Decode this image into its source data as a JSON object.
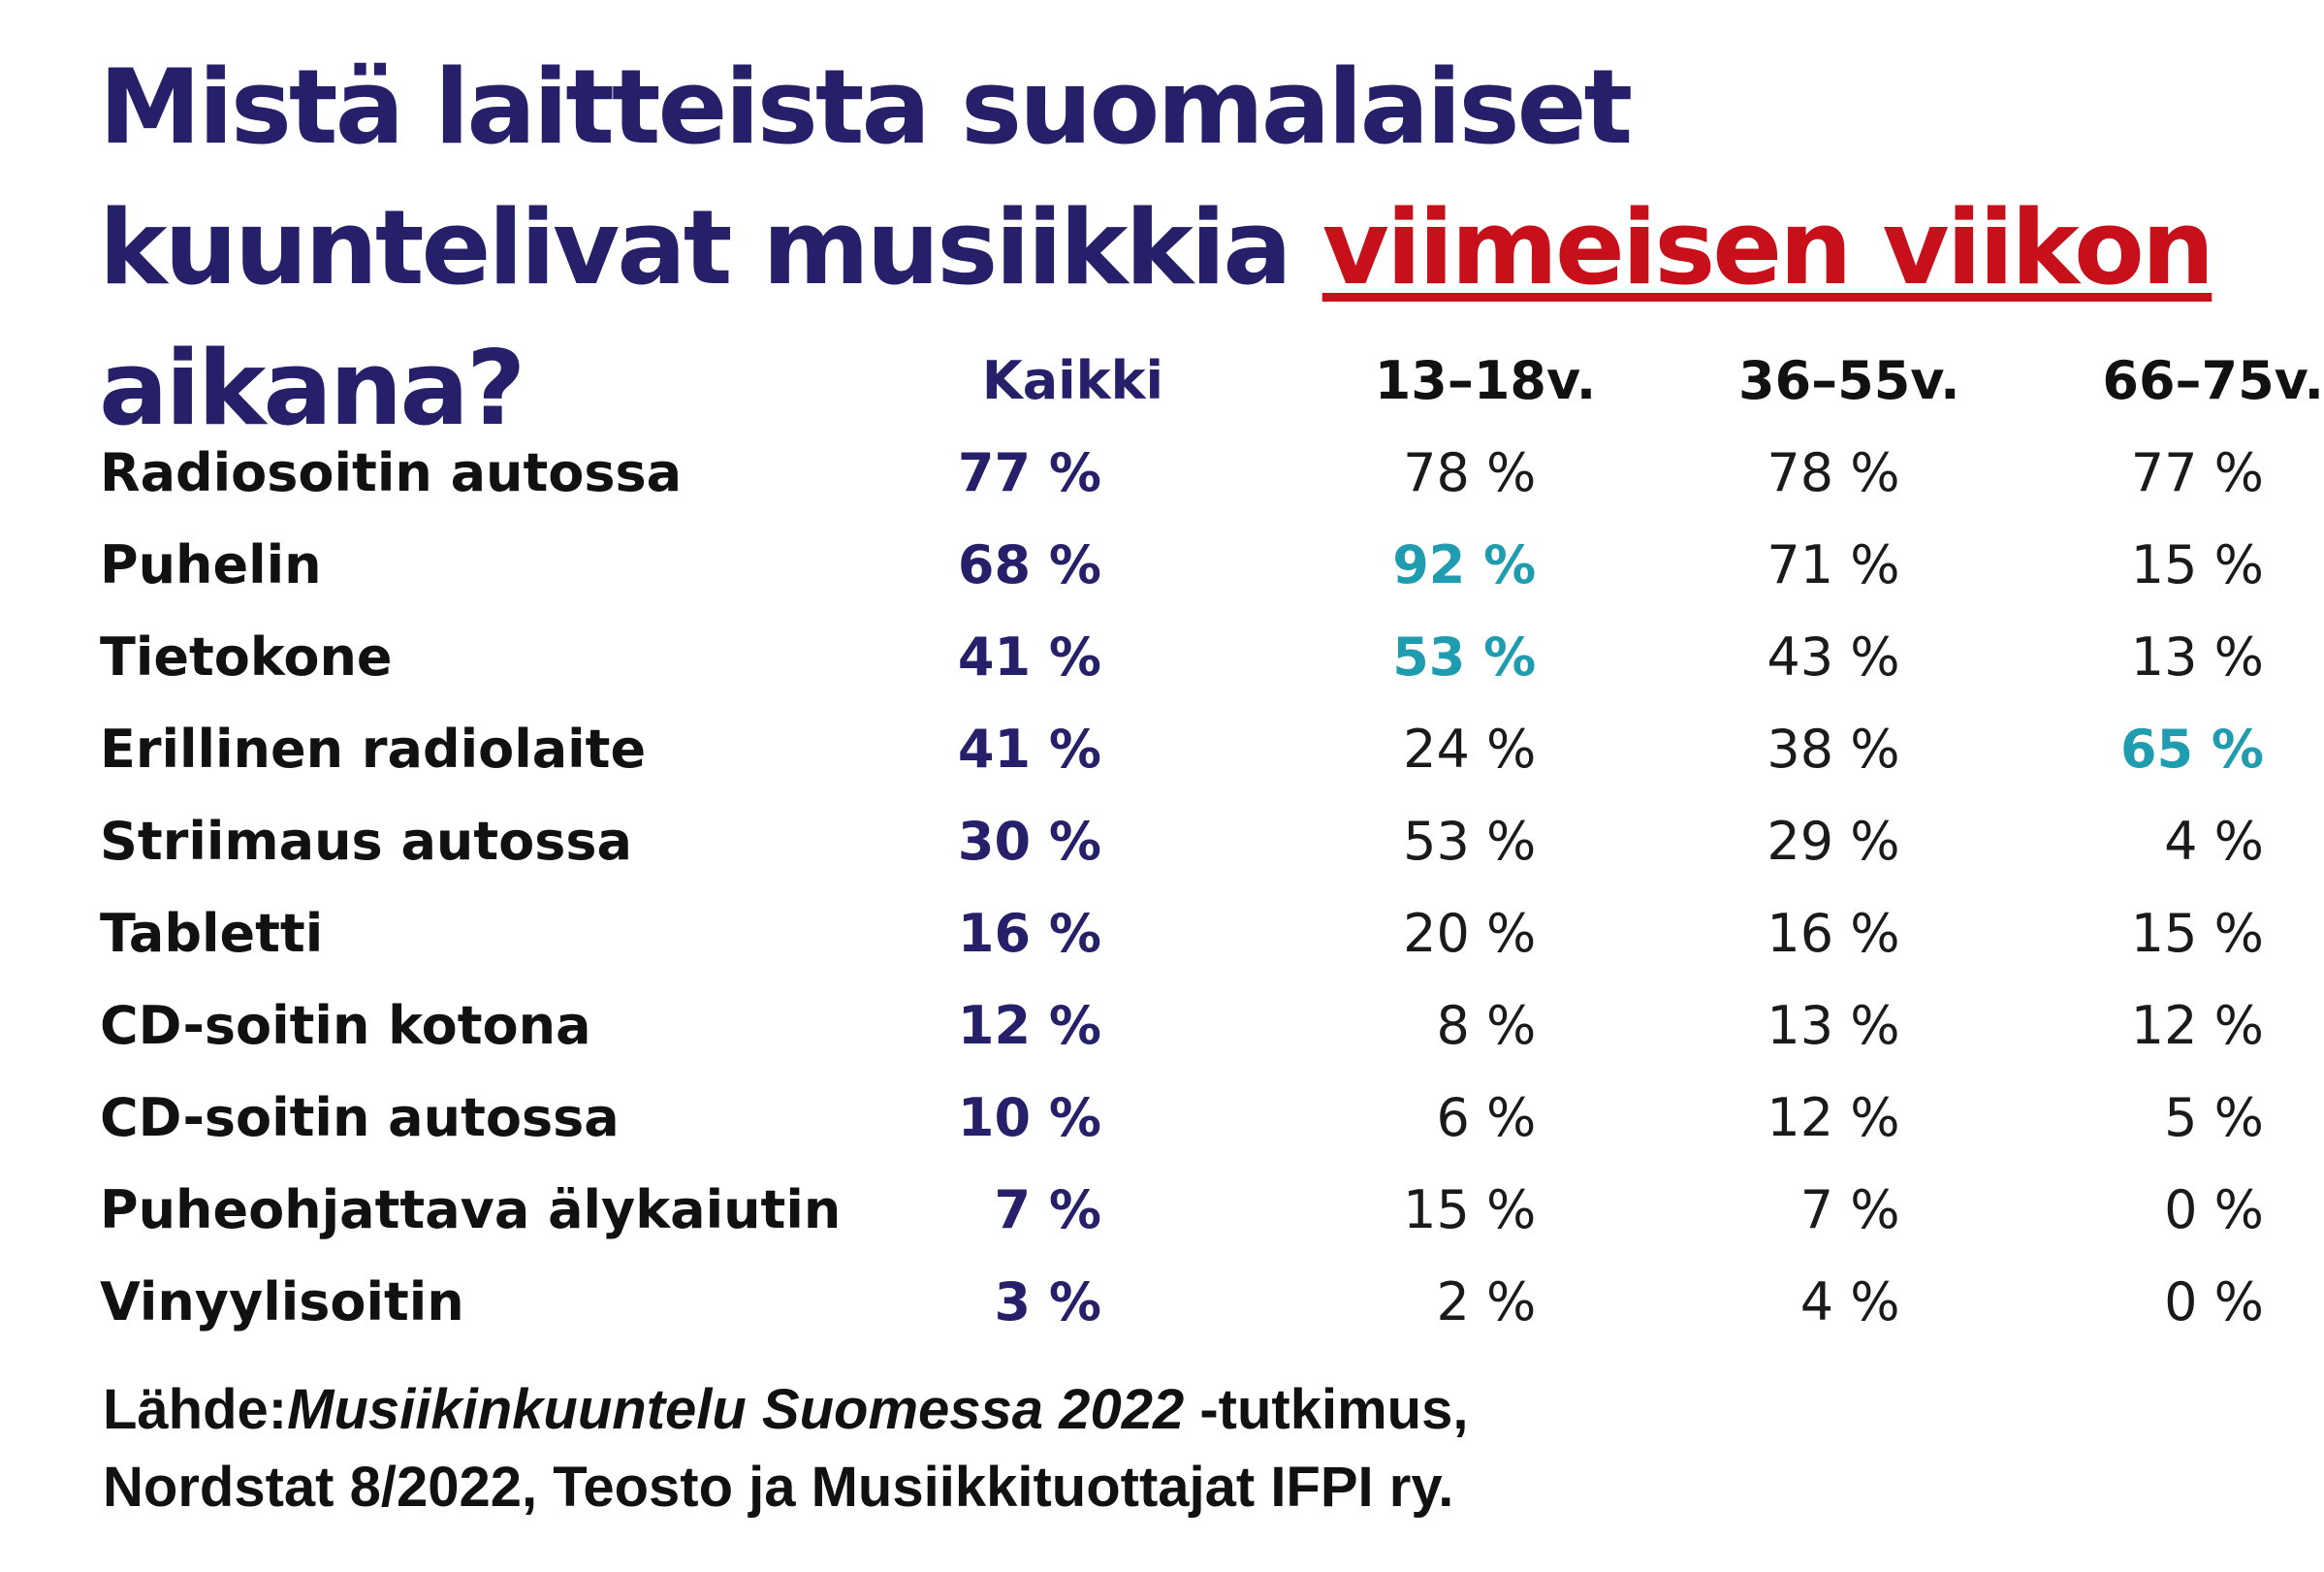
{
  "title": {
    "part1": "Mistä laitteista suomalaiset kuuntelivat musiikkia ",
    "highlight": "viimeisen viikon",
    "part2": " aikana?"
  },
  "chart_data": {
    "type": "table",
    "columns": [
      "Kaikki",
      "13–18v.",
      "36–55v.",
      "66–75v."
    ],
    "rows": [
      {
        "label": "Radiosoitin autossa",
        "values": [
          "77 %",
          "78 %",
          "78 %",
          "77 %"
        ],
        "highlight": [
          false,
          false,
          false,
          false
        ]
      },
      {
        "label": "Puhelin",
        "values": [
          "68 %",
          "92 %",
          "71 %",
          "15 %"
        ],
        "highlight": [
          false,
          true,
          false,
          false
        ]
      },
      {
        "label": "Tietokone",
        "values": [
          "41 %",
          "53 %",
          "43 %",
          "13 %"
        ],
        "highlight": [
          false,
          true,
          false,
          false
        ]
      },
      {
        "label": "Erillinen radiolaite",
        "values": [
          "41 %",
          "24 %",
          "38 %",
          "65 %"
        ],
        "highlight": [
          false,
          false,
          false,
          true
        ]
      },
      {
        "label": "Striimaus autossa",
        "values": [
          "30 %",
          "53 %",
          "29 %",
          "4 %"
        ],
        "highlight": [
          false,
          false,
          false,
          false
        ]
      },
      {
        "label": "Tabletti",
        "values": [
          "16 %",
          "20 %",
          "16 %",
          "15 %"
        ],
        "highlight": [
          false,
          false,
          false,
          false
        ]
      },
      {
        "label": "CD-soitin kotona",
        "values": [
          "12 %",
          "8 %",
          "13 %",
          "12 %"
        ],
        "highlight": [
          false,
          false,
          false,
          false
        ]
      },
      {
        "label": "CD-soitin autossa",
        "values": [
          "10 %",
          "6 %",
          "12 %",
          "5 %"
        ],
        "highlight": [
          false,
          false,
          false,
          false
        ]
      },
      {
        "label": "Puheohjattava älykaiutin",
        "values": [
          "7 %",
          "15 %",
          "7 %",
          "0 %"
        ],
        "highlight": [
          false,
          false,
          false,
          false
        ]
      },
      {
        "label": "Vinyylisoitin",
        "values": [
          "3 %",
          "2 %",
          "4 %",
          "0 %"
        ],
        "highlight": [
          false,
          false,
          false,
          false
        ]
      }
    ]
  },
  "source": {
    "prefix": "Lähde:",
    "title": "Musiikinkuuntelu Suomessa 2022",
    "suffix": " -tutkimus,",
    "line2": "Nordstat 8/2022, Teosto ja Musiikkituottajat IFPI ry."
  },
  "colors": {
    "title": "#26206b",
    "highlight_title": "#c8101a",
    "kaikki": "#26206b",
    "highlight_value": "#1f9cb0",
    "text": "#111111"
  }
}
